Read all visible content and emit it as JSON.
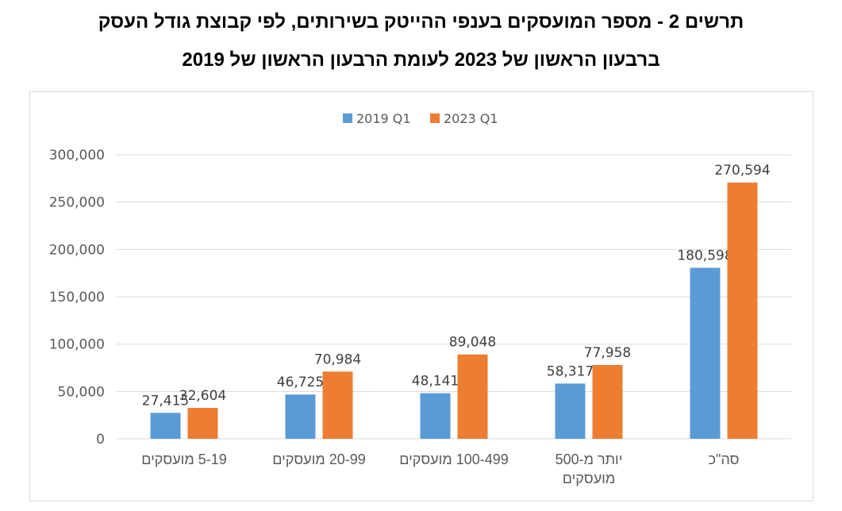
{
  "header": {
    "title_line1": "תרשים 2 - מספר המועסקים בענפי ההייטק בשירותים, לפי קבוצת גודל העסק",
    "title_line2": "ברבעון הראשון של 2023 לעומת הרבעון הראשון של 2019"
  },
  "chart_data": {
    "type": "bar",
    "title": "תרשים 2 - מספר המועסקים בענפי ההייטק בשירותים, לפי קבוצת גודל העסק ברבעון הראשון של 2023 לעומת הרבעון הראשון של 2019",
    "categories": [
      [
        "5-19 מועסקים"
      ],
      [
        "20-99 מועסקים"
      ],
      [
        "100-499 מועסקים"
      ],
      [
        "יותר מ-500",
        "מועסקים"
      ],
      [
        "סה\"כ"
      ]
    ],
    "series": [
      {
        "name": "2019 Q1",
        "values": [
          27415,
          46725,
          48141,
          58317,
          180598
        ],
        "labels": [
          "27,415",
          "46,725",
          "48,141",
          "58,317",
          "180,598"
        ],
        "color": "#5b9bd5"
      },
      {
        "name": "2023 Q1",
        "values": [
          32604,
          70984,
          89048,
          77958,
          270594
        ],
        "labels": [
          "32,604",
          "70,984",
          "89,048",
          "77,958",
          "270,594"
        ],
        "color": "#ed7d31"
      }
    ],
    "ylim": [
      0,
      300000
    ],
    "yticks": [
      0,
      50000,
      100000,
      150000,
      200000,
      250000,
      300000
    ],
    "ytick_labels": [
      "0",
      "50,000",
      "100,000",
      "150,000",
      "200,000",
      "250,000",
      "300,000"
    ],
    "grid": true,
    "gridline_color": "#d9d9d9",
    "legend_position": "top"
  }
}
